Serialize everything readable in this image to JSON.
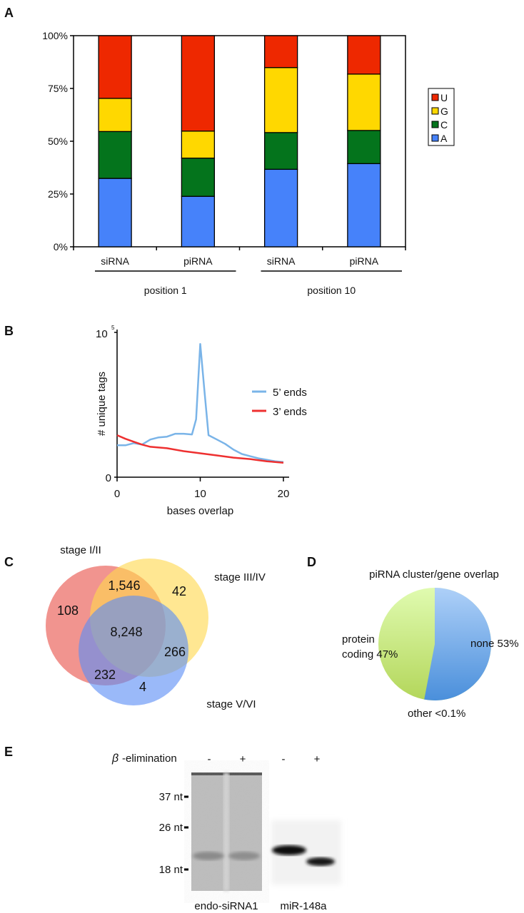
{
  "panels": {
    "a": "A",
    "b": "B",
    "c": "C",
    "d": "D",
    "e": "E"
  },
  "chart_data": [
    {
      "panel": "A",
      "type": "bar",
      "stacked": true,
      "categories": [
        "siRNA",
        "piRNA",
        "siRNA",
        "piRNA"
      ],
      "groups": [
        {
          "label": "position 1",
          "categories": [
            0,
            1
          ]
        },
        {
          "label": "position 10",
          "categories": [
            2,
            3
          ]
        }
      ],
      "series": [
        {
          "name": "A",
          "color": "#4682fa",
          "values": [
            32.4,
            23.9,
            36.7,
            39.4
          ]
        },
        {
          "name": "C",
          "color": "#04741c",
          "values": [
            22.2,
            18.1,
            17.4,
            15.7
          ]
        },
        {
          "name": "G",
          "color": "#ffd800",
          "values": [
            15.7,
            12.8,
            30.8,
            26.7
          ]
        },
        {
          "name": "U",
          "color": "#ee2800",
          "values": [
            29.7,
            45.2,
            15.1,
            18.2
          ]
        }
      ],
      "yticks": [
        "0%",
        "25%",
        "50%",
        "75%",
        "100%"
      ],
      "ylim": [
        0,
        100
      ],
      "legend_order": [
        "U",
        "G",
        "C",
        "A"
      ],
      "legend_position": "right"
    },
    {
      "panel": "B",
      "type": "line",
      "xlabel": "bases overlap",
      "ylabel": "# unique tags",
      "xlim": [
        0,
        20
      ],
      "xticks": [
        "0",
        "10",
        "20"
      ],
      "ylim": [
        0,
        100000
      ],
      "yticks": {
        "bottom": "0",
        "top_base": "10",
        "top_exp": "5"
      },
      "legend_position": "right",
      "series": [
        {
          "name": "5’ ends",
          "color": "#7ab4e8",
          "x": [
            0,
            1,
            2,
            3,
            4,
            5,
            6,
            7,
            8,
            9,
            9.5,
            10,
            10.5,
            11,
            12,
            13,
            14,
            15,
            16,
            17,
            18,
            19,
            20
          ],
          "y": [
            22000,
            22000,
            23500,
            22500,
            26000,
            27500,
            28000,
            30000,
            30000,
            29500,
            40000,
            92000,
            60000,
            29000,
            26000,
            23000,
            19000,
            16000,
            14500,
            13000,
            12000,
            11000,
            10500
          ]
        },
        {
          "name": "3’ ends",
          "color": "#ee3030",
          "x": [
            0,
            1,
            2,
            3,
            4,
            6,
            8,
            10,
            12,
            14,
            16,
            18,
            20
          ],
          "y": [
            29000,
            26500,
            24500,
            22500,
            21000,
            20000,
            18000,
            16500,
            15000,
            13500,
            12500,
            11000,
            10000
          ]
        }
      ]
    },
    {
      "panel": "C",
      "type": "venn",
      "sets": [
        {
          "name": "stage I/II",
          "color": "#e8524a"
        },
        {
          "name": "stage III/IV",
          "color": "#ffd84f"
        },
        {
          "name": "stage V/VI",
          "color": "#5c8ef5"
        }
      ],
      "regions": {
        "I/II only": "108",
        "III/IV only": "42",
        "V/VI only": "4",
        "I/II & III/IV": "1,546",
        "III/IV & V/VI": "266",
        "I/II & V/VI": "232",
        "all": "8,248"
      }
    },
    {
      "panel": "D",
      "type": "pie",
      "title": "piRNA cluster/gene overlap",
      "slices": [
        {
          "label": "none 53%",
          "value": 53,
          "color": "#6fa9ea"
        },
        {
          "label": "other  <0.1%",
          "value": 0.1,
          "color": "#6fa9ea"
        },
        {
          "label_line1": "protein",
          "label_line2": "coding 47%",
          "value": 47,
          "color": "#cdea8c"
        }
      ]
    }
  ],
  "gel": {
    "treatment_label": "-elimination",
    "treatment_symbol": "β",
    "lane_signs": [
      "-",
      "+",
      "-",
      "+"
    ],
    "markers": [
      "37 nt",
      "26 nt",
      "18 nt"
    ],
    "probes": [
      "endo-siRNA1",
      "miR-148a"
    ]
  }
}
